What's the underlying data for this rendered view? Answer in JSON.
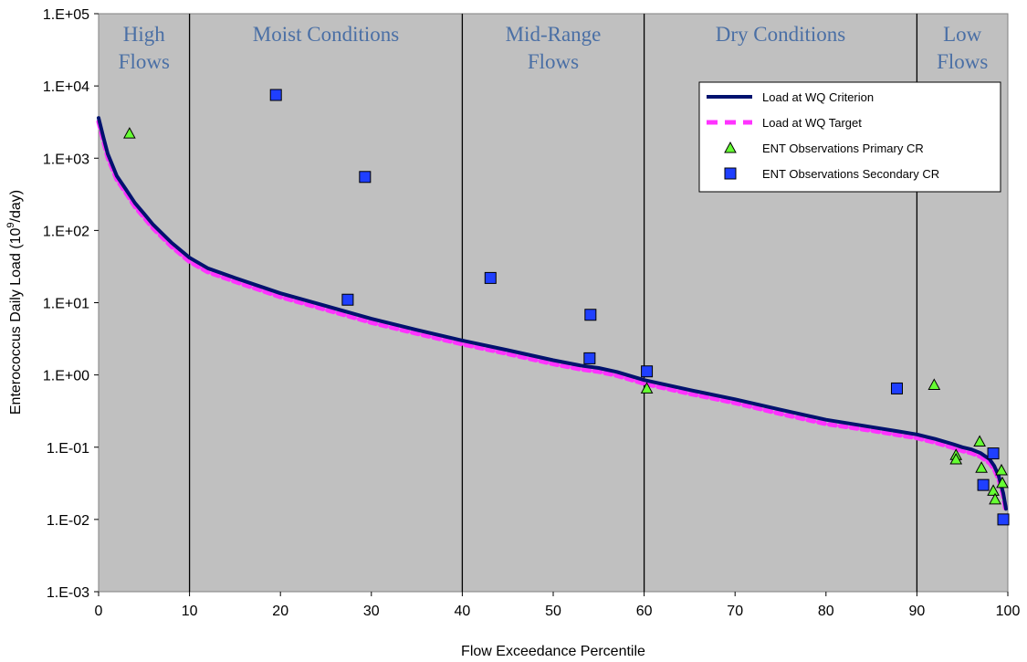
{
  "chart_data": {
    "type": "scatter",
    "title": "",
    "xlabel": "Flow Exceedance Percentile",
    "ylabel_main": "Enterococcus Daily Load (10",
    "ylabel_sup": "9",
    "ylabel_end": "/day)",
    "xlim": [
      0,
      100
    ],
    "ylim": [
      0.001,
      100000
    ],
    "yscale": "log",
    "x_ticks": [
      "0",
      "10",
      "20",
      "30",
      "40",
      "50",
      "60",
      "70",
      "80",
      "90",
      "100"
    ],
    "y_ticks": [
      "1.E-03",
      "1.E-02",
      "1.E-01",
      "1.E+00",
      "1.E+01",
      "1.E+02",
      "1.E+03",
      "1.E+04",
      "1.E+05"
    ],
    "zone_boundaries": [
      10,
      40,
      60,
      90
    ],
    "zones": [
      {
        "lines": [
          "High",
          "Flows"
        ],
        "x": 5
      },
      {
        "lines": [
          "Moist Conditions"
        ],
        "x": 25
      },
      {
        "lines": [
          "Mid-Range",
          "Flows"
        ],
        "x": 50
      },
      {
        "lines": [
          "Dry Conditions"
        ],
        "x": 75
      },
      {
        "lines": [
          "Low",
          "Flows"
        ],
        "x": 95
      }
    ],
    "series": [
      {
        "name": "Load at WQ Criterion",
        "kind": "line",
        "color": "#00126e",
        "x": [
          0,
          0.5,
          1,
          2,
          3,
          4,
          5,
          6,
          8,
          10,
          12,
          15,
          20,
          25,
          30,
          35,
          40,
          45,
          50,
          53,
          55,
          57,
          60,
          65,
          70,
          75,
          80,
          85,
          88,
          90,
          92,
          94,
          95,
          96,
          97,
          98,
          98.5,
          99,
          99.5,
          99.8
        ],
        "y": [
          3600,
          2000,
          1150,
          570,
          370,
          240,
          170,
          120,
          68,
          42,
          30,
          22,
          13.5,
          9,
          6,
          4.2,
          3,
          2.2,
          1.6,
          1.35,
          1.25,
          1.1,
          0.85,
          0.62,
          0.46,
          0.33,
          0.24,
          0.19,
          0.165,
          0.15,
          0.13,
          0.11,
          0.1,
          0.093,
          0.083,
          0.068,
          0.055,
          0.04,
          0.023,
          0.014
        ]
      },
      {
        "name": "Load at WQ Target",
        "kind": "dashed-line",
        "color": "#ff33ff",
        "x": [
          0,
          0.5,
          1,
          2,
          3,
          4,
          5,
          6,
          8,
          10,
          12,
          15,
          20,
          25,
          30,
          35,
          40,
          45,
          50,
          53,
          55,
          57,
          60,
          65,
          70,
          75,
          80,
          85,
          88,
          90,
          92,
          94,
          95,
          96,
          97,
          98,
          98.5,
          99,
          99.5,
          99.8
        ],
        "y": [
          3200,
          1780,
          1020,
          505,
          330,
          213,
          151,
          107,
          60,
          37,
          26.7,
          19.6,
          12,
          8,
          5.3,
          3.74,
          2.67,
          1.96,
          1.42,
          1.2,
          1.11,
          0.98,
          0.76,
          0.55,
          0.41,
          0.29,
          0.21,
          0.17,
          0.147,
          0.134,
          0.116,
          0.098,
          0.089,
          0.083,
          0.074,
          0.06,
          0.049,
          0.036,
          0.021,
          0.0125
        ]
      },
      {
        "name": "ENT Observations Primary CR",
        "kind": "triangle",
        "color": "#66ff33",
        "x": [
          3.4,
          60.3,
          91.9,
          94.3,
          94.3,
          96.9,
          97.1,
          98.4,
          98.6,
          99.3,
          99.4
        ],
        "y": [
          2200,
          0.65,
          0.73,
          0.078,
          0.068,
          0.12,
          0.052,
          0.025,
          0.019,
          0.048,
          0.032
        ]
      },
      {
        "name": "ENT Observations Secondary CR",
        "kind": "square",
        "color": "#1f3fff",
        "x": [
          19.5,
          29.3,
          27.4,
          43.1,
          54.1,
          54.0,
          60.3,
          87.8,
          97.3,
          98.4,
          99.5
        ],
        "y": [
          7500,
          550,
          11,
          22,
          6.8,
          1.7,
          1.12,
          0.65,
          0.03,
          0.082,
          0.01
        ]
      }
    ],
    "legend_placement": "top-right"
  }
}
